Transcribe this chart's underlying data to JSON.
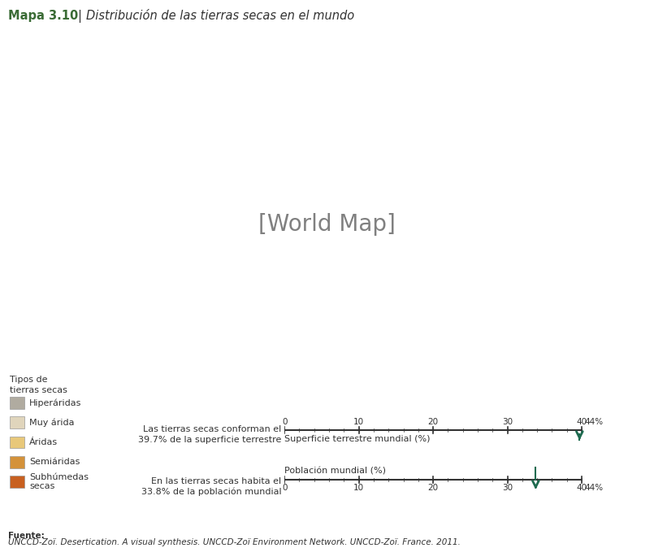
{
  "title_bold": "Mapa 3.10",
  "title_separator": "|",
  "title_italic": "Distribución de las tierras secas en el mundo",
  "background_color": "#ffffff",
  "ocean_color": "#c8dce8",
  "land_color": "#f0ece0",
  "legend_title": "Tipos de\ntierras secas",
  "legend_items": [
    {
      "label": "Hiperáridas",
      "color": "#b0aba0"
    },
    {
      "label": "Muy árida",
      "color": "#e0d5bc"
    },
    {
      "label": "Áridas",
      "color": "#e8c87a"
    },
    {
      "label": "Semiáridas",
      "color": "#d4923a"
    },
    {
      "label": "Subhúmedas\nsecas",
      "color": "#c86020"
    }
  ],
  "bar1_left_line1": "Las tierras secas conforman el",
  "bar1_left_line2": "39.7% de la superficie terrestre",
  "bar1_axis_label": "Superficie terrestre mundial (%)",
  "bar1_value": 39.7,
  "bar2_left_line1": "En las tierras secas habita el",
  "bar2_left_line2": "33.8% de la población mundial",
  "bar2_axis_label": "Población mundial (%)",
  "bar2_value": 33.8,
  "bar_max": 44,
  "bar_ticks": [
    0,
    10,
    20,
    30,
    40
  ],
  "arrow_color": "#1e6b50",
  "tick_color": "#333333",
  "source_label": "Fuente:",
  "source_text": "UNCCD-Zoï. Desertication. A visual synthesis. UNCCD-Zoï Environment Network. UNCCD-Zoï. France. 2011.",
  "title_color": "#3a6b35",
  "text_color": "#333333"
}
